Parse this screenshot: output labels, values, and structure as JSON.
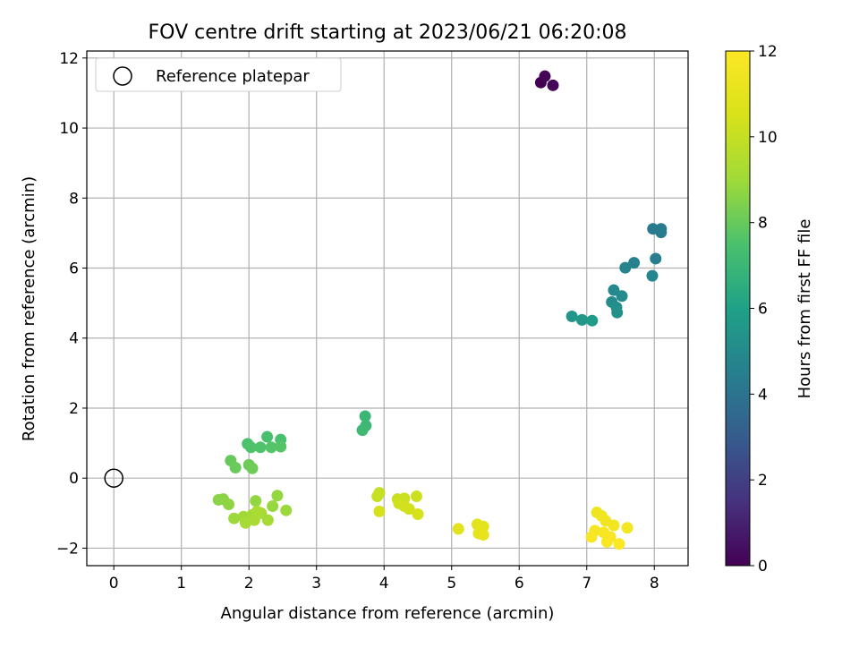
{
  "chart_data": {
    "type": "scatter",
    "title": "FOV centre drift starting at 2023/06/21 06:20:08",
    "xlabel": "Angular distance from reference (arcmin)",
    "ylabel": "Rotation from reference (arcmin)",
    "xlim": [
      -0.4,
      8.5
    ],
    "ylim": [
      -2.5,
      12.2
    ],
    "xticks": [
      "0",
      "1",
      "2",
      "3",
      "4",
      "5",
      "6",
      "7",
      "8"
    ],
    "yticks": [
      "−2",
      "0",
      "2",
      "4",
      "6",
      "8",
      "10",
      "12"
    ],
    "grid": true,
    "legend": {
      "placement": "top-left",
      "entries": [
        "Reference platepar"
      ]
    },
    "reference_point": {
      "x": 0,
      "y": 0
    },
    "colorbar": {
      "label": "Hours from first FF file",
      "range": [
        0,
        12
      ],
      "ticks": [
        "0",
        "2",
        "4",
        "6",
        "8",
        "10",
        "12"
      ],
      "colormap": "viridis"
    },
    "points": [
      {
        "x": 6.32,
        "y": 11.3,
        "h": 0.0
      },
      {
        "x": 6.38,
        "y": 11.48,
        "h": 0.1
      },
      {
        "x": 6.5,
        "y": 11.22,
        "h": 0.15
      },
      {
        "x": 7.98,
        "y": 7.12,
        "h": 4.3
      },
      {
        "x": 8.1,
        "y": 7.12,
        "h": 4.3
      },
      {
        "x": 8.1,
        "y": 7.02,
        "h": 4.35
      },
      {
        "x": 8.02,
        "y": 6.27,
        "h": 4.5
      },
      {
        "x": 7.7,
        "y": 6.15,
        "h": 4.6
      },
      {
        "x": 7.57,
        "y": 6.01,
        "h": 4.7
      },
      {
        "x": 7.97,
        "y": 5.78,
        "h": 4.8
      },
      {
        "x": 7.4,
        "y": 5.37,
        "h": 4.9
      },
      {
        "x": 7.52,
        "y": 5.2,
        "h": 5.0
      },
      {
        "x": 7.37,
        "y": 5.03,
        "h": 5.1
      },
      {
        "x": 7.44,
        "y": 4.88,
        "h": 5.2
      },
      {
        "x": 7.45,
        "y": 4.73,
        "h": 5.3
      },
      {
        "x": 6.78,
        "y": 4.62,
        "h": 5.5
      },
      {
        "x": 6.93,
        "y": 4.52,
        "h": 5.6
      },
      {
        "x": 7.08,
        "y": 4.5,
        "h": 5.7
      },
      {
        "x": 3.72,
        "y": 1.77,
        "h": 7.0
      },
      {
        "x": 3.73,
        "y": 1.5,
        "h": 7.05
      },
      {
        "x": 3.68,
        "y": 1.37,
        "h": 7.1
      },
      {
        "x": 2.27,
        "y": 1.18,
        "h": 7.4
      },
      {
        "x": 2.47,
        "y": 1.1,
        "h": 7.45
      },
      {
        "x": 1.98,
        "y": 0.98,
        "h": 7.5
      },
      {
        "x": 2.03,
        "y": 0.88,
        "h": 7.55
      },
      {
        "x": 2.17,
        "y": 0.88,
        "h": 7.6
      },
      {
        "x": 2.33,
        "y": 0.88,
        "h": 7.65
      },
      {
        "x": 2.47,
        "y": 0.9,
        "h": 7.7
      },
      {
        "x": 1.73,
        "y": 0.5,
        "h": 8.0
      },
      {
        "x": 1.8,
        "y": 0.3,
        "h": 8.05
      },
      {
        "x": 2.0,
        "y": 0.38,
        "h": 8.1
      },
      {
        "x": 2.05,
        "y": 0.28,
        "h": 8.15
      },
      {
        "x": 1.55,
        "y": -0.62,
        "h": 8.6
      },
      {
        "x": 1.62,
        "y": -0.6,
        "h": 8.65
      },
      {
        "x": 1.7,
        "y": -0.75,
        "h": 8.7
      },
      {
        "x": 2.1,
        "y": -0.65,
        "h": 8.75
      },
      {
        "x": 2.42,
        "y": -0.5,
        "h": 8.8
      },
      {
        "x": 2.35,
        "y": -0.8,
        "h": 8.85
      },
      {
        "x": 2.55,
        "y": -0.92,
        "h": 8.9
      },
      {
        "x": 1.78,
        "y": -1.15,
        "h": 8.95
      },
      {
        "x": 1.92,
        "y": -1.1,
        "h": 9.0
      },
      {
        "x": 2.05,
        "y": -1.05,
        "h": 9.05
      },
      {
        "x": 2.18,
        "y": -1.0,
        "h": 9.1
      },
      {
        "x": 2.28,
        "y": -1.2,
        "h": 9.15
      },
      {
        "x": 1.95,
        "y": -1.28,
        "h": 9.2
      },
      {
        "x": 2.08,
        "y": -1.2,
        "h": 9.25
      },
      {
        "x": 2.12,
        "y": -0.95,
        "h": 9.3
      },
      {
        "x": 3.93,
        "y": -0.42,
        "h": 10.0
      },
      {
        "x": 3.9,
        "y": -0.52,
        "h": 10.05
      },
      {
        "x": 4.2,
        "y": -0.6,
        "h": 10.1
      },
      {
        "x": 4.3,
        "y": -0.58,
        "h": 10.15
      },
      {
        "x": 4.48,
        "y": -0.52,
        "h": 10.2
      },
      {
        "x": 4.22,
        "y": -0.72,
        "h": 10.25
      },
      {
        "x": 4.3,
        "y": -0.8,
        "h": 10.3
      },
      {
        "x": 4.37,
        "y": -0.88,
        "h": 10.35
      },
      {
        "x": 3.93,
        "y": -0.95,
        "h": 10.4
      },
      {
        "x": 4.5,
        "y": -1.03,
        "h": 10.45
      },
      {
        "x": 5.1,
        "y": -1.45,
        "h": 10.9
      },
      {
        "x": 5.38,
        "y": -1.32,
        "h": 10.95
      },
      {
        "x": 5.47,
        "y": -1.38,
        "h": 11.0
      },
      {
        "x": 5.4,
        "y": -1.58,
        "h": 11.05
      },
      {
        "x": 5.47,
        "y": -1.62,
        "h": 11.1
      },
      {
        "x": 7.15,
        "y": -0.98,
        "h": 11.4
      },
      {
        "x": 7.22,
        "y": -1.08,
        "h": 11.45
      },
      {
        "x": 7.28,
        "y": -1.22,
        "h": 11.5
      },
      {
        "x": 7.4,
        "y": -1.35,
        "h": 11.55
      },
      {
        "x": 7.6,
        "y": -1.42,
        "h": 11.6
      },
      {
        "x": 7.12,
        "y": -1.5,
        "h": 11.65
      },
      {
        "x": 7.25,
        "y": -1.55,
        "h": 11.7
      },
      {
        "x": 7.07,
        "y": -1.68,
        "h": 11.75
      },
      {
        "x": 7.35,
        "y": -1.68,
        "h": 11.8
      },
      {
        "x": 7.3,
        "y": -1.82,
        "h": 11.85
      },
      {
        "x": 7.48,
        "y": -1.88,
        "h": 11.9
      }
    ]
  }
}
